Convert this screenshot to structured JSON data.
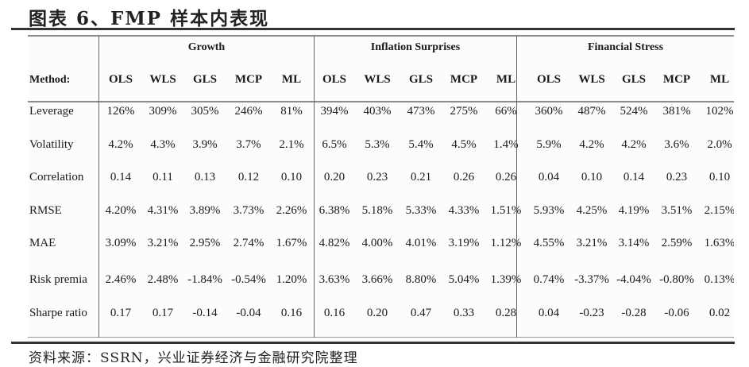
{
  "title": "图表 6、FMP 样本内表现",
  "table": {
    "method_label": "Method:",
    "groups": [
      {
        "name": "Growth",
        "columns": [
          "OLS",
          "WLS",
          "GLS",
          "MCP",
          "ML"
        ]
      },
      {
        "name": "Inflation Surprises",
        "columns": [
          "OLS",
          "WLS",
          "GLS",
          "MCP",
          "ML"
        ]
      },
      {
        "name": "Financial Stress",
        "columns": [
          "OLS",
          "WLS",
          "GLS",
          "MCP",
          "ML"
        ]
      }
    ],
    "rows": [
      {
        "label": "Leverage",
        "values": [
          "126%",
          "309%",
          "305%",
          "246%",
          "81%",
          "394%",
          "403%",
          "473%",
          "275%",
          "66%",
          "360%",
          "487%",
          "524%",
          "381%",
          "102%"
        ]
      },
      {
        "label": "Volatility",
        "values": [
          "4.2%",
          "4.3%",
          "3.9%",
          "3.7%",
          "2.1%",
          "6.5%",
          "5.3%",
          "5.4%",
          "4.5%",
          "1.4%",
          "5.9%",
          "4.2%",
          "4.2%",
          "3.6%",
          "2.0%"
        ]
      },
      {
        "label": "Correlation",
        "values": [
          "0.14",
          "0.11",
          "0.13",
          "0.12",
          "0.10",
          "0.20",
          "0.23",
          "0.21",
          "0.26",
          "0.26",
          "0.04",
          "0.10",
          "0.14",
          "0.23",
          "0.10"
        ]
      },
      {
        "label": "RMSE",
        "values": [
          "4.20%",
          "4.31%",
          "3.89%",
          "3.73%",
          "2.26%",
          "6.38%",
          "5.18%",
          "5.33%",
          "4.33%",
          "1.51%",
          "5.93%",
          "4.25%",
          "4.19%",
          "3.51%",
          "2.15%"
        ]
      },
      {
        "label": "MAE",
        "values": [
          "3.09%",
          "3.21%",
          "2.95%",
          "2.74%",
          "1.67%",
          "4.82%",
          "4.00%",
          "4.01%",
          "3.19%",
          "1.12%",
          "4.55%",
          "3.21%",
          "3.14%",
          "2.59%",
          "1.63%"
        ]
      },
      {
        "label": "Risk premia",
        "values": [
          "2.46%",
          "2.48%",
          "-1.84%",
          "-0.54%",
          "1.20%",
          "3.63%",
          "3.66%",
          "8.80%",
          "5.04%",
          "1.39%",
          "0.74%",
          "-3.37%",
          "-4.04%",
          "-0.80%",
          "0.13%"
        ]
      },
      {
        "label": "Sharpe ratio",
        "values": [
          "0.17",
          "0.17",
          "-0.14",
          "-0.04",
          "0.16",
          "0.16",
          "0.20",
          "0.47",
          "0.33",
          "0.28",
          "0.04",
          "-0.23",
          "-0.28",
          "-0.06",
          "0.02"
        ]
      }
    ]
  },
  "footer": "资料来源：SSRN，兴业证券经济与金融研究院整理"
}
